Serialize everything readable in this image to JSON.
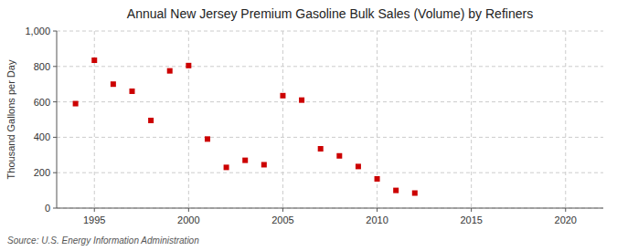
{
  "chart_data": {
    "type": "scatter",
    "title": "Annual New Jersey Premium Gasoline Bulk Sales (Volume) by Refiners",
    "y_label": "Thousand Gallons per Day",
    "annotations": [
      "Source: U.S. Energy Information Administration"
    ],
    "x": [
      1994,
      1995,
      1996,
      1997,
      1998,
      1999,
      2000,
      2001,
      2002,
      2003,
      2004,
      2005,
      2006,
      2007,
      2008,
      2009,
      2010,
      2011,
      2012
    ],
    "values": [
      590,
      835,
      700,
      660,
      495,
      775,
      805,
      390,
      230,
      270,
      245,
      635,
      610,
      335,
      295,
      235,
      165,
      100,
      85
    ],
    "color": "#cc0000",
    "marker": "square",
    "xlim": [
      1993,
      2022
    ],
    "ylim": [
      0,
      1000
    ],
    "xticks": [
      1995,
      2000,
      2005,
      2010,
      2015,
      2020
    ],
    "yticks": [
      0,
      200,
      400,
      600,
      800,
      {
        "value": 1000,
        "label": "1,000"
      }
    ],
    "grid": true
  }
}
